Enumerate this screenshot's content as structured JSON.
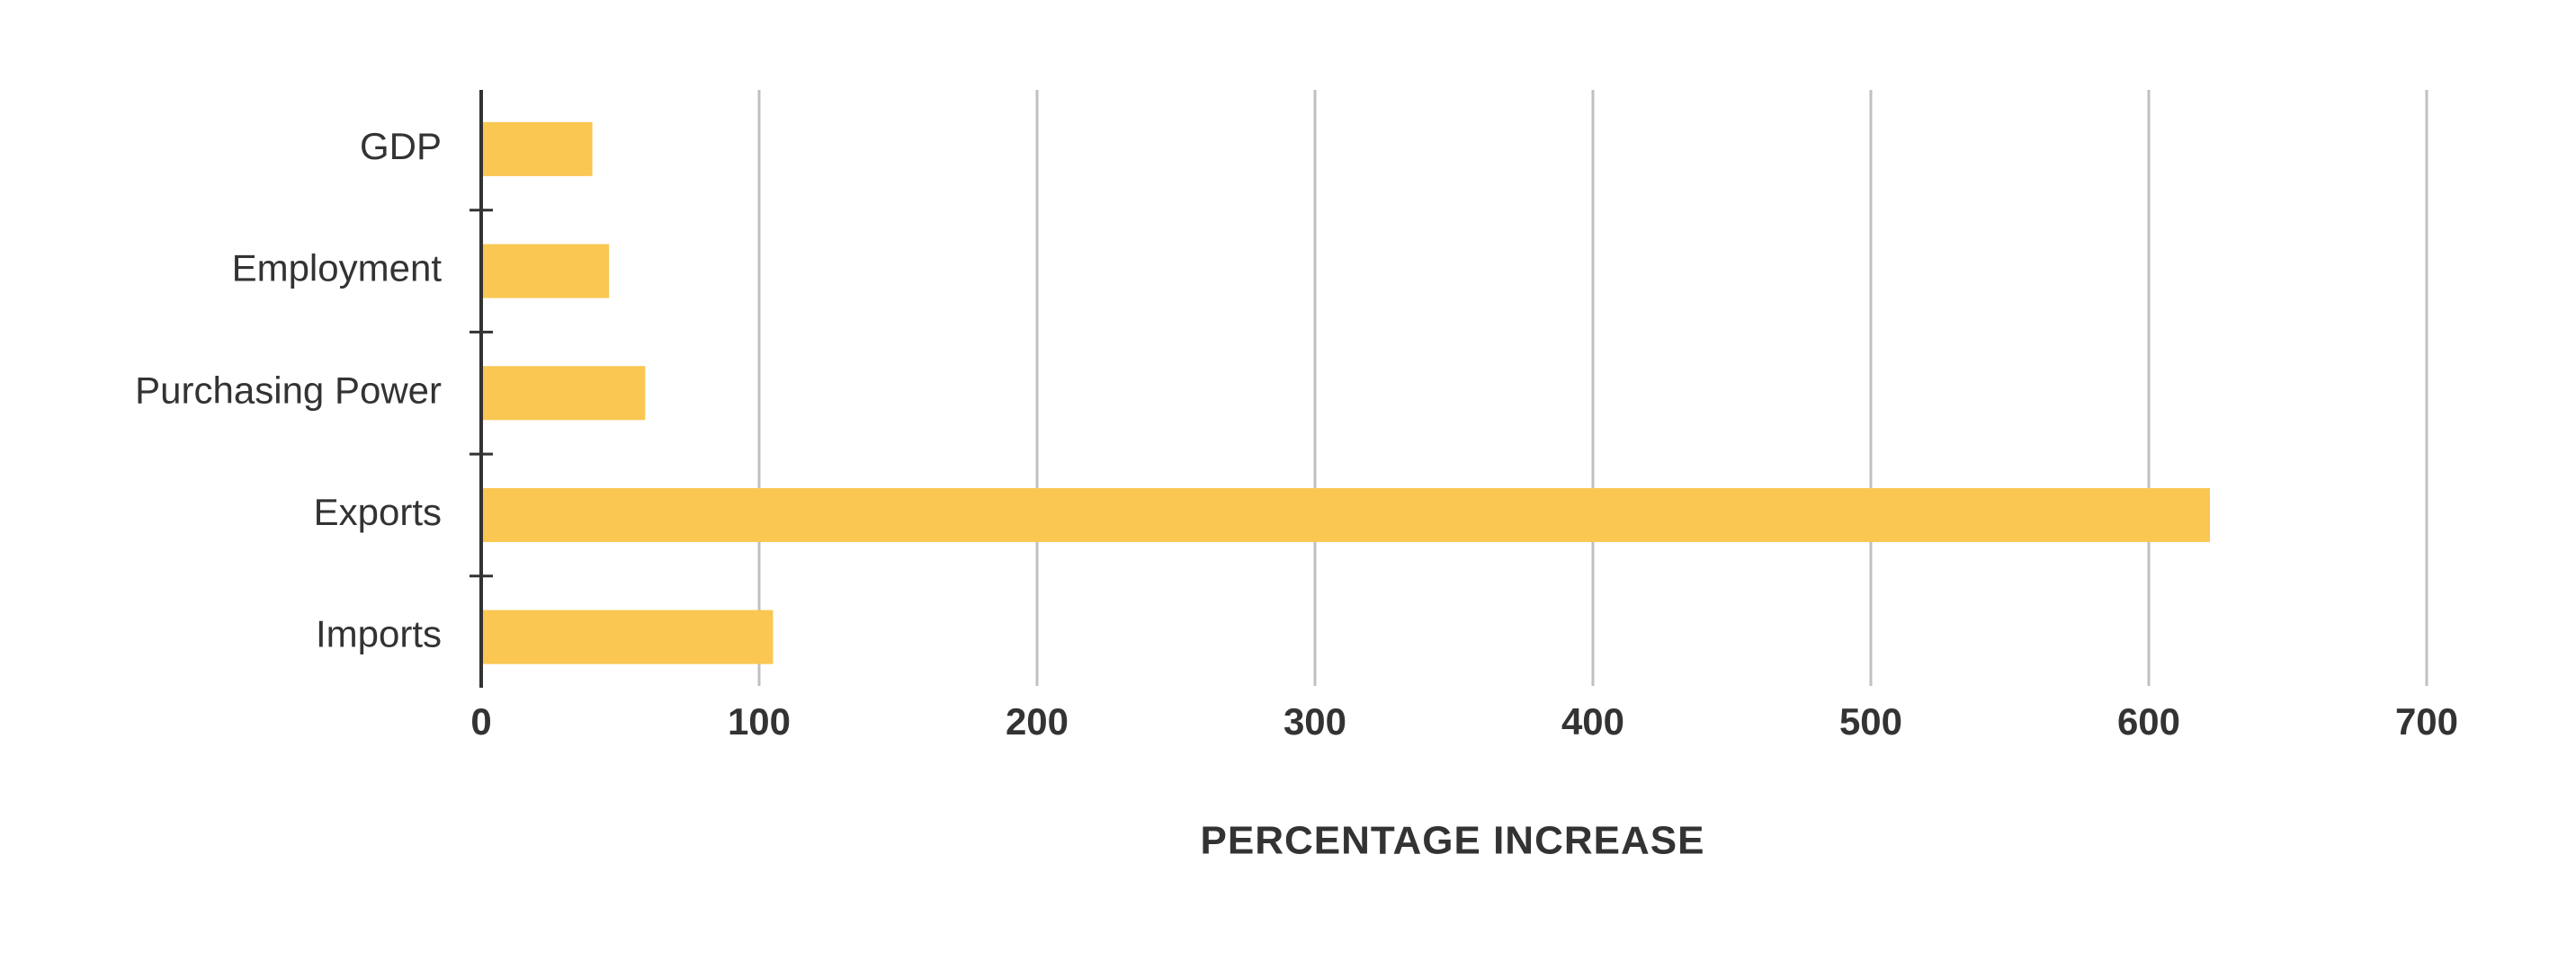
{
  "chart_data": {
    "type": "bar",
    "orientation": "horizontal",
    "categories": [
      "GDP",
      "Employment",
      "Purchasing Power",
      "Exports",
      "Imports"
    ],
    "values": [
      40,
      46,
      59,
      622,
      105
    ],
    "color": "#f9c752",
    "xlabel": "PERCENTAGE INCREASE",
    "xlim": [
      0,
      700
    ],
    "xticks": [
      0,
      100,
      200,
      300,
      400,
      500,
      600,
      700
    ],
    "grid": true
  }
}
